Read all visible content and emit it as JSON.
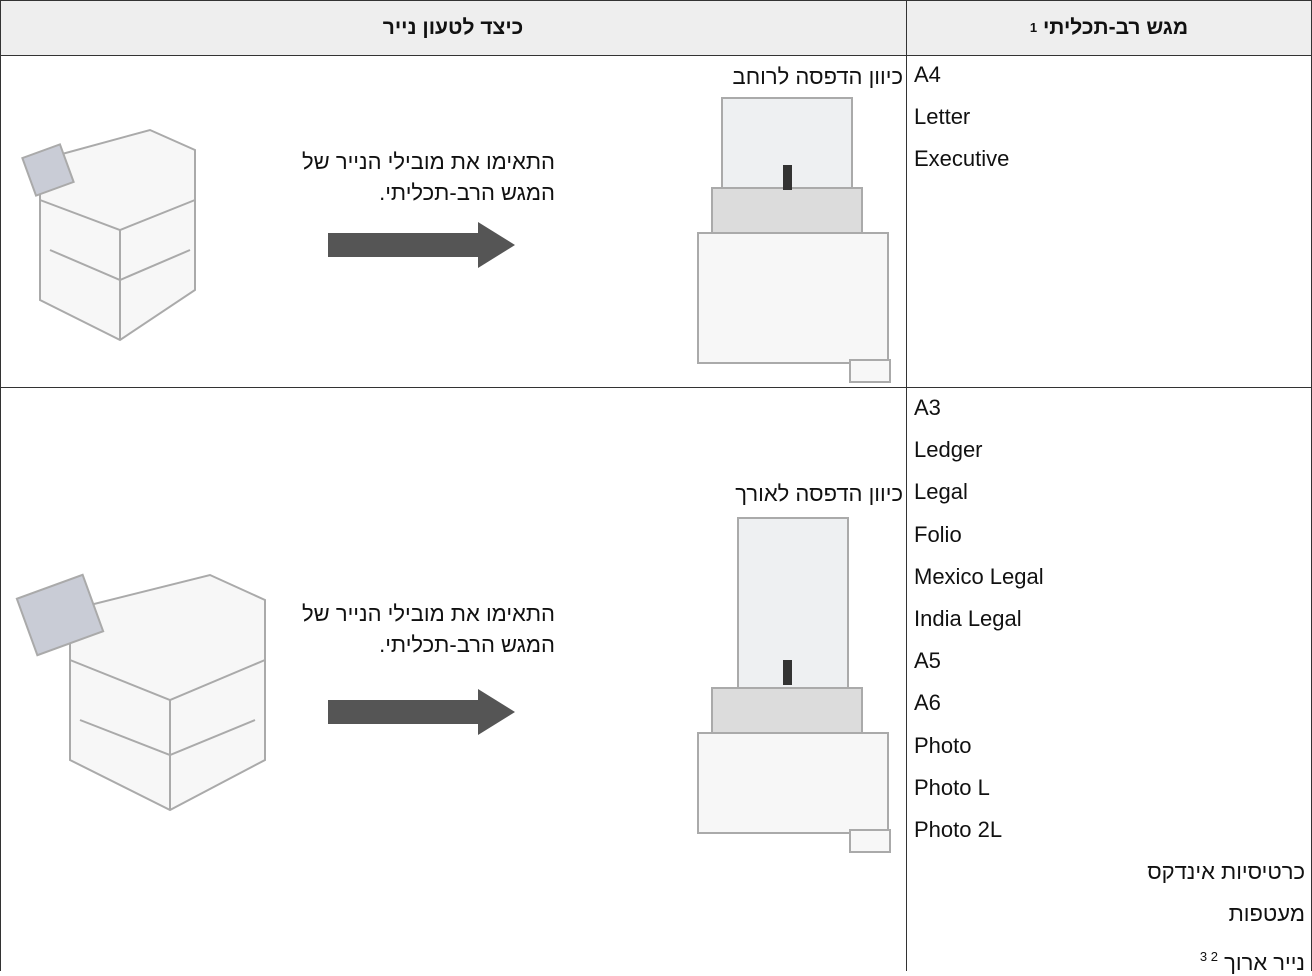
{
  "header": {
    "columns": [
      {
        "label": "מגש רב-תכליתי",
        "footnote": "1"
      },
      {
        "label": "כיצד לטעון נייר"
      }
    ]
  },
  "rows": [
    {
      "paper_sizes": [
        "A4",
        "Letter",
        "Executive"
      ],
      "orientation": "כיוון הדפסה לרוחב",
      "instruction": [
        "התאימו את מובילי הנייר של",
        "המגש הרב-תכליתי."
      ]
    },
    {
      "paper_sizes": [
        "A3",
        "Ledger",
        "Legal",
        "Folio",
        "Mexico Legal",
        "India Legal",
        "A5",
        "A6",
        "Photo",
        "Photo L",
        "Photo 2L",
        "כרטיסיות אינדקס",
        "מעטפות",
        {
          "text": "נייר ארוך",
          "footnote": "2 3"
        }
      ],
      "orientation": "כיוון הדפסה לאורך",
      "instruction": [
        "התאימו את מובילי הנייר של",
        "המגש הרב-תכליתי."
      ]
    }
  ]
}
